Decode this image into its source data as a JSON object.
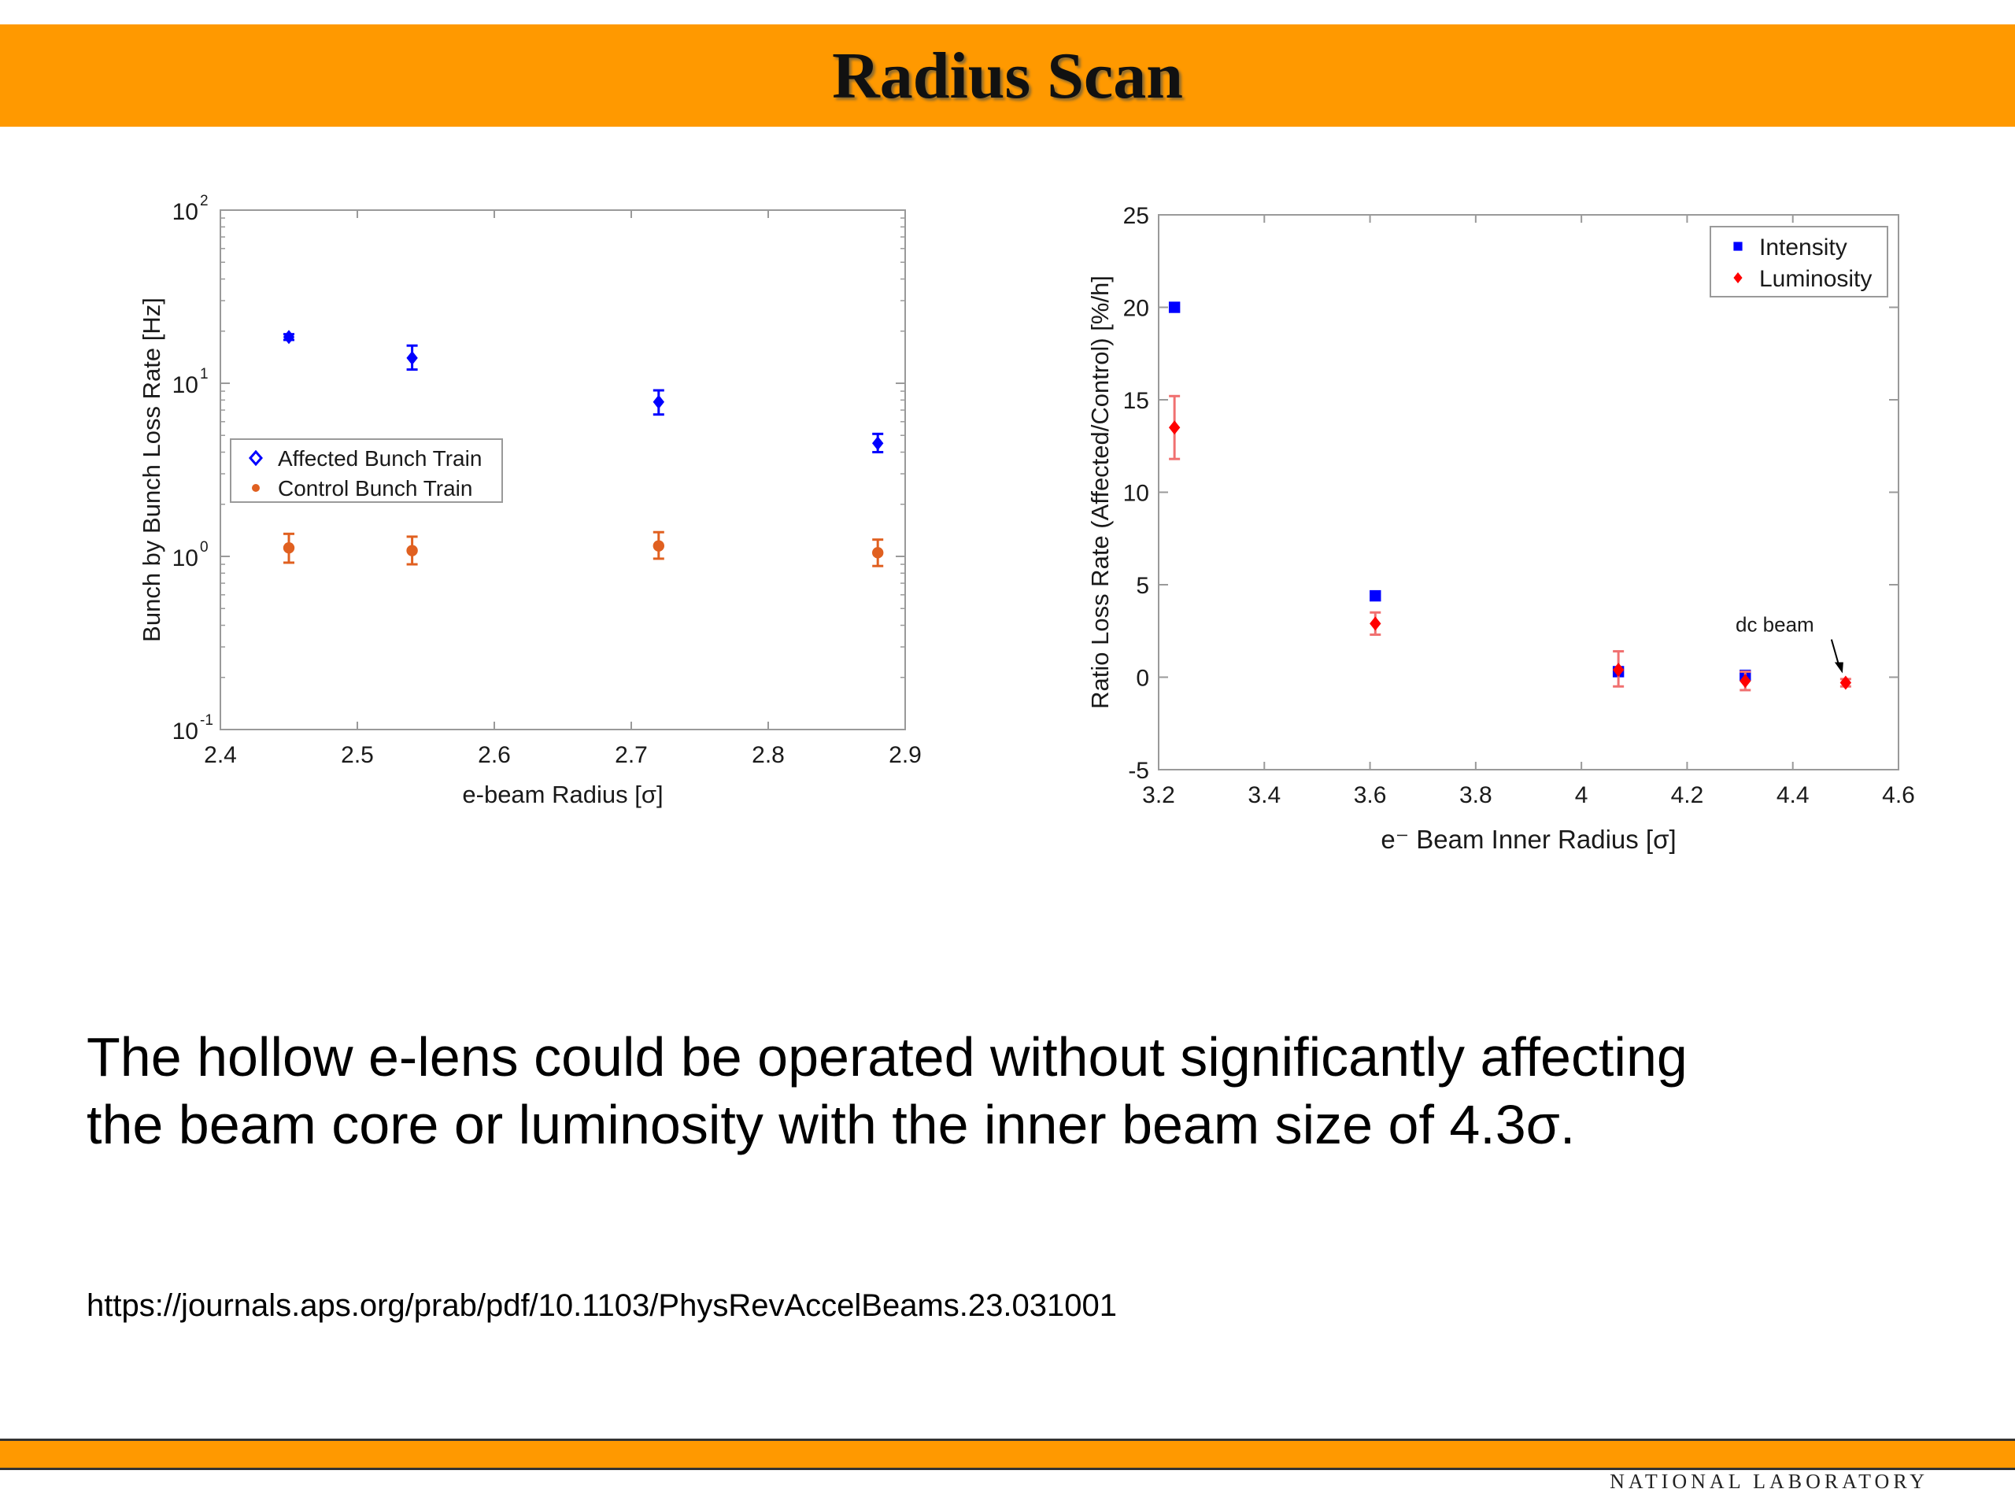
{
  "slide": {
    "title": "Radius Scan",
    "body_lines": [
      "The hollow e-lens could be operated without significantly affecting",
      "the beam core or luminosity with the inner beam size of 4.3σ."
    ],
    "reference_url": "https://journals.aps.org/prab/pdf/10.1103/PhysRevAccelBeams.23.031001",
    "footer_logo": "NATIONAL LABORATORY",
    "colors": {
      "title_bar": "#ff9900",
      "footer_bar": "#ff9900"
    }
  },
  "chart_data": [
    {
      "type": "scatter",
      "title": "",
      "xlabel": "e-beam Radius [σ]",
      "ylabel": "Bunch by Bunch  Loss Rate [Hz]",
      "xlim": [
        2.4,
        2.9
      ],
      "ylim": [
        0.1,
        100
      ],
      "yscale": "log",
      "grid": false,
      "legend_position": "center-left",
      "x_ticks": [
        "2.4",
        "2.5",
        "2.6",
        "2.7",
        "2.8",
        "2.9"
      ],
      "y_ticks": [
        {
          "value": 100,
          "base": "10",
          "exp": "2"
        },
        {
          "value": 10,
          "base": "10",
          "exp": "1"
        },
        {
          "value": 1,
          "base": "10",
          "exp": "0"
        },
        {
          "value": 0.1,
          "base": "10",
          "exp": "-1"
        }
      ],
      "series": [
        {
          "name": "Affected Bunch Train",
          "color": "#0000ff",
          "marker": "diamond",
          "x": [
            2.45,
            2.54,
            2.72,
            2.88
          ],
          "y": [
            18.5,
            14,
            7.8,
            4.5
          ],
          "err_low": [
            17.8,
            12,
            6.6,
            4.0
          ],
          "err_high": [
            19.2,
            16.5,
            9.1,
            5.1
          ]
        },
        {
          "name": "Control Bunch Train",
          "color": "#e06020",
          "marker": "circle",
          "x": [
            2.45,
            2.54,
            2.72,
            2.88
          ],
          "y": [
            1.12,
            1.08,
            1.15,
            1.05
          ],
          "err_low": [
            0.92,
            0.9,
            0.97,
            0.88
          ],
          "err_high": [
            1.35,
            1.3,
            1.38,
            1.25
          ]
        }
      ]
    },
    {
      "type": "scatter",
      "title": "",
      "xlabel": "e⁻ Beam Inner Radius [σ]",
      "ylabel": "Ratio Loss Rate (Affected/Control) [%/h]",
      "xlim": [
        3.2,
        4.6
      ],
      "ylim": [
        -5,
        25
      ],
      "grid": false,
      "legend_position": "top-right",
      "x_ticks": [
        "3.2",
        "3.4",
        "3.6",
        "3.8",
        "4",
        "4.2",
        "4.4",
        "4.6"
      ],
      "y_ticks": [
        "-5",
        "0",
        "5",
        "10",
        "15",
        "20",
        "25"
      ],
      "annotation": {
        "text": "dc beam",
        "x": 4.5,
        "y": -0.3
      },
      "series": [
        {
          "name": "Intensity",
          "color": "#0000ff",
          "marker": "square",
          "x": [
            3.23,
            3.61,
            4.07,
            4.31
          ],
          "y": [
            20,
            4.4,
            0.3,
            0.1
          ],
          "err_low": [
            20,
            4.4,
            0.3,
            0.1
          ],
          "err_high": [
            20,
            4.4,
            0.3,
            0.1
          ]
        },
        {
          "name": "Luminosity",
          "color": "#ff0000",
          "marker": "diamond",
          "x": [
            3.23,
            3.61,
            4.07,
            4.31,
            4.5
          ],
          "y": [
            13.5,
            2.9,
            0.4,
            -0.2,
            -0.3
          ],
          "err_low": [
            11.8,
            2.3,
            -0.5,
            -0.7,
            -0.5
          ],
          "err_high": [
            15.2,
            3.5,
            1.4,
            0.3,
            -0.1
          ]
        }
      ]
    }
  ]
}
